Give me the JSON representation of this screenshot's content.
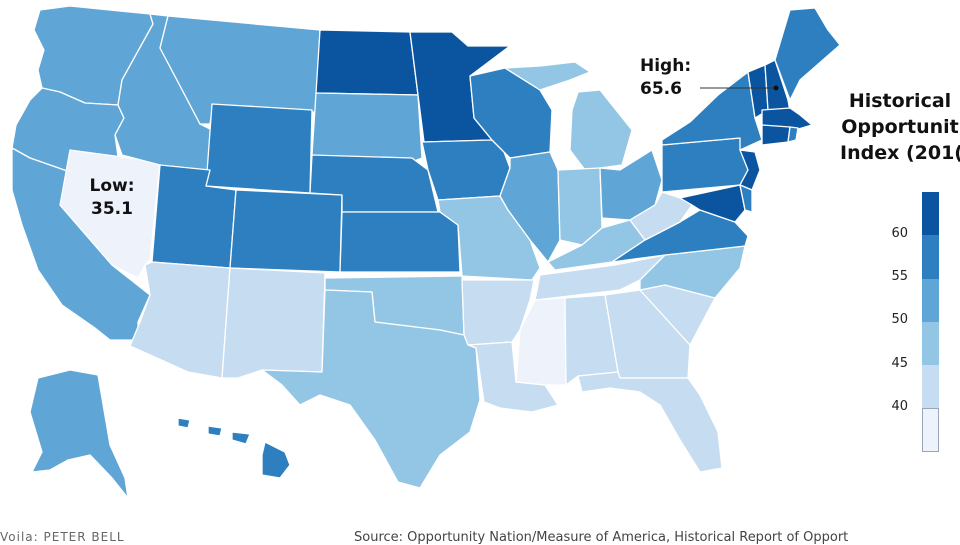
{
  "legend": {
    "title_lines": [
      "Historical",
      "Opportunit",
      "Index (201("
    ],
    "ticks": [
      "60",
      "55",
      "50",
      "45",
      "40"
    ],
    "colors": [
      "#0b55a0",
      "#2d7fc0",
      "#5fa5d6",
      "#93c5e4",
      "#c6dcf0",
      "#eef2fb"
    ]
  },
  "callouts": {
    "low": {
      "label": "Low:",
      "value": "35.1",
      "state": "Nevada"
    },
    "high": {
      "label": "High:",
      "value": "65.6",
      "state": "New Hampshire"
    }
  },
  "footer": {
    "credit": "Voila: PETER BELL",
    "source": "Source: Opportunity Nation/Measure of America, Historical Report of Opport"
  },
  "map_data": {
    "regions": [
      {
        "name": "Washington",
        "bin": 3
      },
      {
        "name": "Oregon",
        "bin": 3
      },
      {
        "name": "California",
        "bin": 3
      },
      {
        "name": "Nevada",
        "bin": 6
      },
      {
        "name": "Idaho",
        "bin": 3
      },
      {
        "name": "Montana",
        "bin": 3
      },
      {
        "name": "Wyoming",
        "bin": 2
      },
      {
        "name": "Utah",
        "bin": 2
      },
      {
        "name": "Arizona",
        "bin": 5
      },
      {
        "name": "Colorado",
        "bin": 2
      },
      {
        "name": "New Mexico",
        "bin": 5
      },
      {
        "name": "North Dakota",
        "bin": 1
      },
      {
        "name": "South Dakota",
        "bin": 3
      },
      {
        "name": "Nebraska",
        "bin": 2
      },
      {
        "name": "Kansas",
        "bin": 2
      },
      {
        "name": "Oklahoma",
        "bin": 4
      },
      {
        "name": "Texas",
        "bin": 4
      },
      {
        "name": "Minnesota",
        "bin": 1
      },
      {
        "name": "Iowa",
        "bin": 2
      },
      {
        "name": "Missouri",
        "bin": 4
      },
      {
        "name": "Arkansas",
        "bin": 5
      },
      {
        "name": "Louisiana",
        "bin": 5
      },
      {
        "name": "Wisconsin",
        "bin": 2
      },
      {
        "name": "Illinois",
        "bin": 3
      },
      {
        "name": "Michigan",
        "bin": 4
      },
      {
        "name": "Indiana",
        "bin": 4
      },
      {
        "name": "Ohio",
        "bin": 3
      },
      {
        "name": "Kentucky",
        "bin": 4
      },
      {
        "name": "Tennessee",
        "bin": 5
      },
      {
        "name": "Mississippi",
        "bin": 6
      },
      {
        "name": "Alabama",
        "bin": 5
      },
      {
        "name": "Georgia",
        "bin": 5
      },
      {
        "name": "Florida",
        "bin": 5
      },
      {
        "name": "South Carolina",
        "bin": 5
      },
      {
        "name": "North Carolina",
        "bin": 4
      },
      {
        "name": "Virginia",
        "bin": 2
      },
      {
        "name": "West Virginia",
        "bin": 5
      },
      {
        "name": "Pennsylvania",
        "bin": 2
      },
      {
        "name": "New York",
        "bin": 2
      },
      {
        "name": "Vermont",
        "bin": 1
      },
      {
        "name": "New Hampshire",
        "bin": 1
      },
      {
        "name": "Maine",
        "bin": 2
      },
      {
        "name": "Massachusetts",
        "bin": 1
      },
      {
        "name": "Rhode Island",
        "bin": 2
      },
      {
        "name": "Connecticut",
        "bin": 1
      },
      {
        "name": "New Jersey",
        "bin": 1
      },
      {
        "name": "Delaware",
        "bin": 2
      },
      {
        "name": "Maryland",
        "bin": 1
      },
      {
        "name": "Alaska",
        "bin": 3
      },
      {
        "name": "Hawaii",
        "bin": 2
      }
    ]
  }
}
